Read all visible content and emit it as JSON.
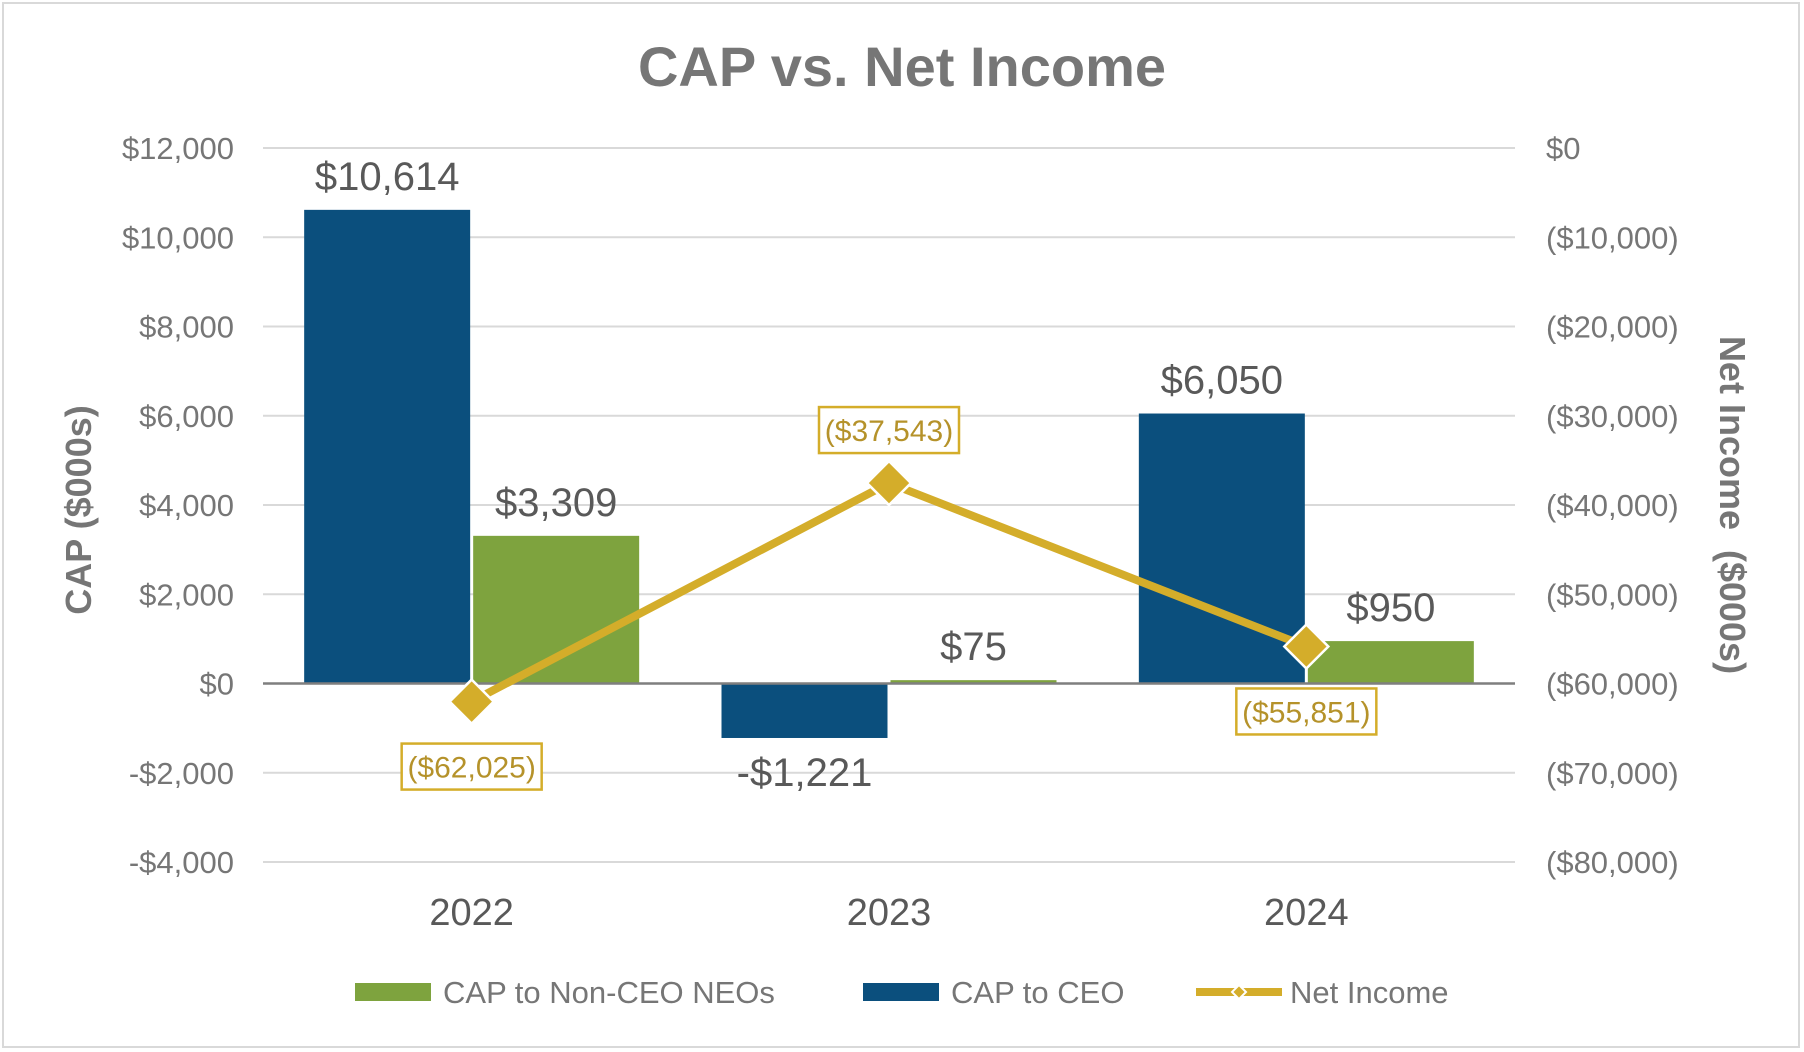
{
  "chart_data": {
    "type": "bar",
    "title": "CAP vs. Net Income",
    "categories": [
      "2022",
      "2023",
      "2024"
    ],
    "ylabel": "CAP ($000s)",
    "y2label": "Net Income  ($000s)",
    "ylim": [
      -4000,
      12000
    ],
    "y_ticks": [
      12000,
      10000,
      8000,
      6000,
      4000,
      2000,
      0,
      -2000,
      -4000
    ],
    "y_tick_labels": [
      "$12,000",
      "$10,000",
      "$8,000",
      "$6,000",
      "$4,000",
      "$2,000",
      "$0",
      "-$2,000",
      "-$4,000"
    ],
    "y2lim": [
      -80000,
      0
    ],
    "y2_ticks": [
      0,
      -10000,
      -20000,
      -30000,
      -40000,
      -50000,
      -60000,
      -70000,
      -80000
    ],
    "y2_tick_labels": [
      "$0",
      "($10,000)",
      "($20,000)",
      "($30,000)",
      "($40,000)",
      "($50,000)",
      "($60,000)",
      "($70,000)",
      "($80,000)"
    ],
    "grid": true,
    "legend_position": "bottom",
    "series": [
      {
        "name": "CAP to CEO",
        "kind": "bar",
        "axis": "left",
        "color": "#0b4f7d",
        "values": [
          10614,
          -1221,
          6050
        ],
        "labels": [
          "$10,614",
          "-$1,221",
          "$6,050"
        ]
      },
      {
        "name": "CAP to Non-CEO NEOs",
        "kind": "bar",
        "axis": "left",
        "color": "#7ea33e",
        "values": [
          3309,
          75,
          950
        ],
        "labels": [
          "$3,309",
          "$75",
          "$950"
        ]
      },
      {
        "name": "Net Income",
        "kind": "line",
        "axis": "right",
        "color": "#d4ad2a",
        "values": [
          -62025,
          -37543,
          -55851
        ],
        "labels": [
          "($62,025)",
          "($37,543)",
          "($55,851)"
        ]
      }
    ],
    "legend": [
      {
        "name": "CAP to Non-CEO NEOs",
        "color": "#7ea33e",
        "kind": "bar"
      },
      {
        "name": "CAP to CEO",
        "color": "#0b4f7d",
        "kind": "bar"
      },
      {
        "name": "Net Income",
        "color": "#d4ad2a",
        "kind": "line"
      }
    ]
  }
}
